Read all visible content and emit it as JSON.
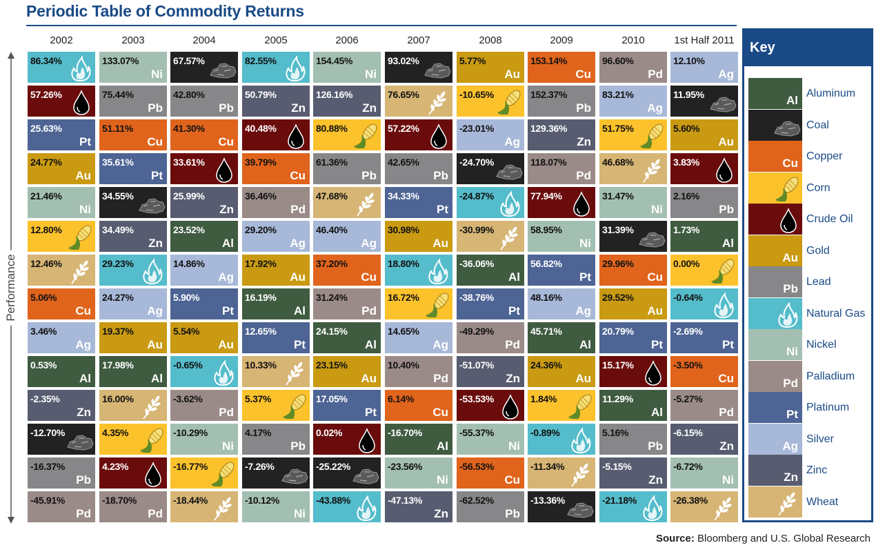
{
  "title": "Periodic Table of Commodity Returns",
  "axis_label": "Performance",
  "source": {
    "label": "Source:",
    "text": "Bloomberg and U.S. Global Research"
  },
  "key": {
    "title": "Key",
    "items": [
      {
        "id": "al",
        "label": "Aluminum",
        "symbol": "Al"
      },
      {
        "id": "coal",
        "label": "Coal",
        "symbol": "",
        "icon": "coal-icon"
      },
      {
        "id": "cu",
        "label": "Copper",
        "symbol": "Cu"
      },
      {
        "id": "corn",
        "label": "Corn",
        "symbol": "",
        "icon": "corn-icon"
      },
      {
        "id": "oil",
        "label": "Crude Oil",
        "symbol": "",
        "icon": "oil-drop-icon"
      },
      {
        "id": "au",
        "label": "Gold",
        "symbol": "Au"
      },
      {
        "id": "pb",
        "label": "Lead",
        "symbol": "Pb"
      },
      {
        "id": "gas",
        "label": "Natural Gas",
        "symbol": "",
        "icon": "flame-icon"
      },
      {
        "id": "ni",
        "label": "Nickel",
        "symbol": "Ni"
      },
      {
        "id": "pd",
        "label": "Palladium",
        "symbol": "Pd"
      },
      {
        "id": "pt",
        "label": "Platinum",
        "symbol": "Pt"
      },
      {
        "id": "ag",
        "label": "Silver",
        "symbol": "Ag"
      },
      {
        "id": "zn",
        "label": "Zinc",
        "symbol": "Zn"
      },
      {
        "id": "wheat",
        "label": "Wheat",
        "symbol": "",
        "icon": "wheat-icon"
      }
    ]
  },
  "colors": {
    "al": "#3f5b40",
    "coal": "#222222",
    "cu": "#e0641c",
    "corn": "#fcc22c",
    "oil": "#6b0c0c",
    "au": "#c99a12",
    "pb": "#87878a",
    "gas": "#55bccb",
    "ni": "#a3bfb1",
    "pd": "#9b8b88",
    "pt": "#4d6494",
    "ag": "#a8b8d8",
    "zn": "#585c70",
    "wheat": "#d6b575",
    "title": "#1a4a86"
  },
  "chart_data": {
    "type": "table",
    "ylabel": "Performance",
    "years": [
      "2002",
      "2003",
      "2004",
      "2005",
      "2006",
      "2007",
      "2008",
      "2009",
      "2010",
      "1st Half 2011"
    ],
    "columns": [
      [
        {
          "c": "gas",
          "v": "86.34%"
        },
        {
          "c": "oil",
          "v": "57.26%"
        },
        {
          "c": "pt",
          "v": "25.63%"
        },
        {
          "c": "au",
          "v": "24.77%"
        },
        {
          "c": "ni",
          "v": "21.46%"
        },
        {
          "c": "corn",
          "v": "12.80%"
        },
        {
          "c": "wheat",
          "v": "12.46%"
        },
        {
          "c": "cu",
          "v": "5.06%"
        },
        {
          "c": "ag",
          "v": "3.46%"
        },
        {
          "c": "al",
          "v": "0.53%"
        },
        {
          "c": "zn",
          "v": "-2.35%"
        },
        {
          "c": "coal",
          "v": "-12.70%"
        },
        {
          "c": "pb",
          "v": "-16.37%"
        },
        {
          "c": "pd",
          "v": "-45.91%"
        }
      ],
      [
        {
          "c": "ni",
          "v": "133.07%"
        },
        {
          "c": "pb",
          "v": "75.44%"
        },
        {
          "c": "cu",
          "v": "51.11%"
        },
        {
          "c": "pt",
          "v": "35.61%"
        },
        {
          "c": "coal",
          "v": "34.55%"
        },
        {
          "c": "zn",
          "v": "34.49%"
        },
        {
          "c": "gas",
          "v": "29.23%"
        },
        {
          "c": "ag",
          "v": "24.27%"
        },
        {
          "c": "au",
          "v": "19.37%"
        },
        {
          "c": "al",
          "v": "17.98%"
        },
        {
          "c": "wheat",
          "v": "16.00%"
        },
        {
          "c": "corn",
          "v": "4.35%"
        },
        {
          "c": "oil",
          "v": "4.23%"
        },
        {
          "c": "pd",
          "v": "-18.70%"
        }
      ],
      [
        {
          "c": "coal",
          "v": "67.57%"
        },
        {
          "c": "pb",
          "v": "42.80%"
        },
        {
          "c": "cu",
          "v": "41.30%"
        },
        {
          "c": "oil",
          "v": "33.61%"
        },
        {
          "c": "zn",
          "v": "25.99%"
        },
        {
          "c": "al",
          "v": "23.52%"
        },
        {
          "c": "ag",
          "v": "14.86%"
        },
        {
          "c": "pt",
          "v": "5.90%"
        },
        {
          "c": "au",
          "v": "5.54%"
        },
        {
          "c": "gas",
          "v": "-0.65%"
        },
        {
          "c": "pd",
          "v": "-3.62%"
        },
        {
          "c": "ni",
          "v": "-10.29%"
        },
        {
          "c": "corn",
          "v": "-16.77%"
        },
        {
          "c": "wheat",
          "v": "-18.44%"
        }
      ],
      [
        {
          "c": "gas",
          "v": "82.55%"
        },
        {
          "c": "zn",
          "v": "50.79%"
        },
        {
          "c": "oil",
          "v": "40.48%"
        },
        {
          "c": "cu",
          "v": "39.79%"
        },
        {
          "c": "pd",
          "v": "36.46%"
        },
        {
          "c": "ag",
          "v": "29.20%"
        },
        {
          "c": "au",
          "v": "17.92%"
        },
        {
          "c": "al",
          "v": "16.19%"
        },
        {
          "c": "pt",
          "v": "12.65%"
        },
        {
          "c": "wheat",
          "v": "10.33%"
        },
        {
          "c": "corn",
          "v": "5.37%"
        },
        {
          "c": "pb",
          "v": "4.17%"
        },
        {
          "c": "coal",
          "v": "-7.26%"
        },
        {
          "c": "ni",
          "v": "-10.12%"
        }
      ],
      [
        {
          "c": "ni",
          "v": "154.45%"
        },
        {
          "c": "zn",
          "v": "126.16%"
        },
        {
          "c": "corn",
          "v": "80.88%"
        },
        {
          "c": "pb",
          "v": "61.36%"
        },
        {
          "c": "wheat",
          "v": "47.68%"
        },
        {
          "c": "ag",
          "v": "46.40%"
        },
        {
          "c": "cu",
          "v": "37.20%"
        },
        {
          "c": "pd",
          "v": "31.24%"
        },
        {
          "c": "al",
          "v": "24.15%"
        },
        {
          "c": "au",
          "v": "23.15%"
        },
        {
          "c": "pt",
          "v": "17.05%"
        },
        {
          "c": "oil",
          "v": "0.02%"
        },
        {
          "c": "coal",
          "v": "-25.22%"
        },
        {
          "c": "gas",
          "v": "-43.88%"
        }
      ],
      [
        {
          "c": "coal",
          "v": "93.02%"
        },
        {
          "c": "wheat",
          "v": "76.65%"
        },
        {
          "c": "oil",
          "v": "57.22%"
        },
        {
          "c": "pb",
          "v": "42.65%"
        },
        {
          "c": "pt",
          "v": "34.33%"
        },
        {
          "c": "au",
          "v": "30.98%"
        },
        {
          "c": "gas",
          "v": "18.80%"
        },
        {
          "c": "corn",
          "v": "16.72%"
        },
        {
          "c": "ag",
          "v": "14.65%"
        },
        {
          "c": "pd",
          "v": "10.40%"
        },
        {
          "c": "cu",
          "v": "6.14%"
        },
        {
          "c": "al",
          "v": "-16.70%"
        },
        {
          "c": "ni",
          "v": "-23.56%"
        },
        {
          "c": "zn",
          "v": "-47.13%"
        }
      ],
      [
        {
          "c": "au",
          "v": "5.77%"
        },
        {
          "c": "corn",
          "v": "-10.65%"
        },
        {
          "c": "ag",
          "v": "-23.01%"
        },
        {
          "c": "coal",
          "v": "-24.70%"
        },
        {
          "c": "gas",
          "v": "-24.87%"
        },
        {
          "c": "wheat",
          "v": "-30.99%"
        },
        {
          "c": "al",
          "v": "-36.06%"
        },
        {
          "c": "pt",
          "v": "-38.76%"
        },
        {
          "c": "pd",
          "v": "-49.29%"
        },
        {
          "c": "zn",
          "v": "-51.07%"
        },
        {
          "c": "oil",
          "v": "-53.53%"
        },
        {
          "c": "ni",
          "v": "-55.37%"
        },
        {
          "c": "cu",
          "v": "-56.53%"
        },
        {
          "c": "pb",
          "v": "-62.52%"
        }
      ],
      [
        {
          "c": "cu",
          "v": "153.14%"
        },
        {
          "c": "pb",
          "v": "152.37%"
        },
        {
          "c": "zn",
          "v": "129.36%"
        },
        {
          "c": "pd",
          "v": "118.07%"
        },
        {
          "c": "oil",
          "v": "77.94%"
        },
        {
          "c": "ni",
          "v": "58.95%"
        },
        {
          "c": "pt",
          "v": "56.82%"
        },
        {
          "c": "ag",
          "v": "48.16%"
        },
        {
          "c": "al",
          "v": "45.71%"
        },
        {
          "c": "au",
          "v": "24.36%"
        },
        {
          "c": "corn",
          "v": "1.84%"
        },
        {
          "c": "gas",
          "v": "-0.89%"
        },
        {
          "c": "wheat",
          "v": "-11.34%"
        },
        {
          "c": "coal",
          "v": "-13.36%"
        }
      ],
      [
        {
          "c": "pd",
          "v": "96.60%"
        },
        {
          "c": "ag",
          "v": "83.21%"
        },
        {
          "c": "corn",
          "v": "51.75%"
        },
        {
          "c": "wheat",
          "v": "46.68%"
        },
        {
          "c": "ni",
          "v": "31.47%"
        },
        {
          "c": "coal",
          "v": "31.39%"
        },
        {
          "c": "cu",
          "v": "29.96%"
        },
        {
          "c": "au",
          "v": "29.52%"
        },
        {
          "c": "pt",
          "v": "20.79%"
        },
        {
          "c": "oil",
          "v": "15.17%"
        },
        {
          "c": "al",
          "v": "11.29%"
        },
        {
          "c": "pb",
          "v": "5.16%"
        },
        {
          "c": "zn",
          "v": "-5.15%"
        },
        {
          "c": "gas",
          "v": "-21.18%"
        }
      ],
      [
        {
          "c": "ag",
          "v": "12.10%"
        },
        {
          "c": "coal",
          "v": "11.95%"
        },
        {
          "c": "au",
          "v": "5.60%"
        },
        {
          "c": "oil",
          "v": "3.83%"
        },
        {
          "c": "pb",
          "v": "2.16%"
        },
        {
          "c": "al",
          "v": "1.73%"
        },
        {
          "c": "corn",
          "v": "0.00%"
        },
        {
          "c": "gas",
          "v": "-0.64%"
        },
        {
          "c": "pt",
          "v": "-2.69%"
        },
        {
          "c": "cu",
          "v": "-3.50%"
        },
        {
          "c": "pd",
          "v": "-5.27%"
        },
        {
          "c": "zn",
          "v": "-6.15%"
        },
        {
          "c": "ni",
          "v": "-6.72%"
        },
        {
          "c": "wheat",
          "v": "-26.38%"
        }
      ]
    ]
  }
}
